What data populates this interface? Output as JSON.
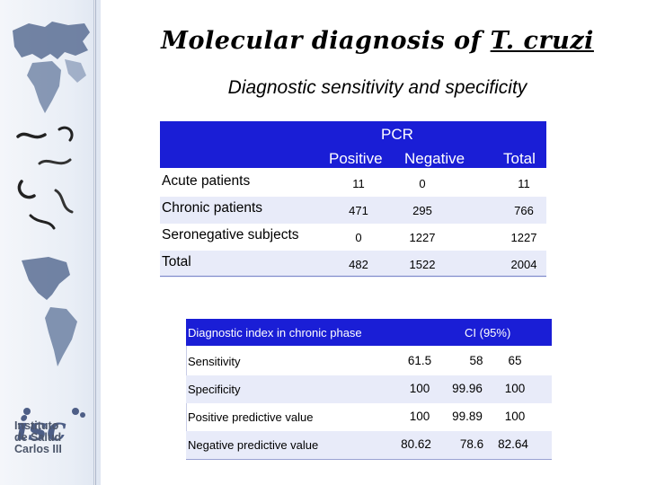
{
  "title": {
    "prefix": "Molecular diagnosis of ",
    "species": "T. cruzi"
  },
  "subtitle": "Diagnostic sensitivity and specificity",
  "table1": {
    "header": {
      "group": "PCR",
      "positive": "Positive",
      "negative": "Negative",
      "total": "Total"
    },
    "rows": [
      {
        "label": "Acute patients",
        "positive": "11",
        "negative": "0",
        "total": "11"
      },
      {
        "label": "Chronic patients",
        "positive": "471",
        "negative": "295",
        "total": "766"
      },
      {
        "label": "Seronegative subjects",
        "positive": "0",
        "negative": "1227",
        "total": "1227"
      },
      {
        "label": "Total",
        "positive": "482",
        "negative": "1522",
        "total": "2004"
      }
    ]
  },
  "table2": {
    "header": {
      "label": "Diagnostic index in chronic phase",
      "ci": "CI (95%)"
    },
    "rows": [
      {
        "label": "Sensitivity",
        "value": "61.5",
        "low": "58",
        "high": "65"
      },
      {
        "label": "Specificity",
        "value": "100",
        "low": "99.96",
        "high": "100"
      },
      {
        "label": "Positive predictive value",
        "value": "100",
        "low": "99.89",
        "high": "100"
      },
      {
        "label": "Negative predictive value",
        "value": "80.62",
        "low": "78.6",
        "high": "82.64"
      }
    ]
  },
  "logo": {
    "mark": "isc",
    "line1": "Instituto",
    "line2": "de Salud",
    "line3": "Carlos III"
  },
  "colors": {
    "header_blue": "#1a1ed6",
    "row_shade": "#e8ebf9"
  }
}
